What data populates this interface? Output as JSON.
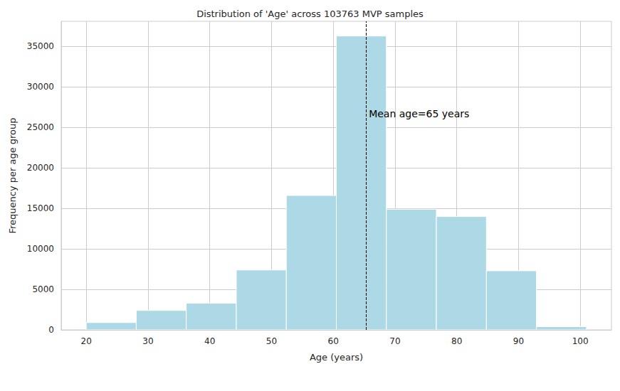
{
  "chart_data": {
    "type": "histogram",
    "title": "Distribution of 'Age' across 103763 MVP samples",
    "x_label": "Age (years)",
    "y_label": "Frequency per age group",
    "bins": [
      20,
      28.1,
      36.2,
      44.3,
      52.4,
      60.5,
      68.6,
      76.7,
      84.8,
      92.9,
      101
    ],
    "values": [
      900,
      2400,
      3300,
      7400,
      16600,
      36300,
      14900,
      14000,
      7300,
      400
    ],
    "color": "#add8e6",
    "xlim": [
      15.95,
      105.05
    ],
    "xticks": [
      20,
      30,
      40,
      50,
      60,
      70,
      80,
      90,
      100
    ],
    "ylim": [
      0,
      38115
    ],
    "yticks": [
      0,
      5000,
      10000,
      15000,
      20000,
      25000,
      30000,
      35000
    ],
    "grid": true,
    "mean_line": 65.3,
    "annotation": "Mean age=65 years"
  }
}
